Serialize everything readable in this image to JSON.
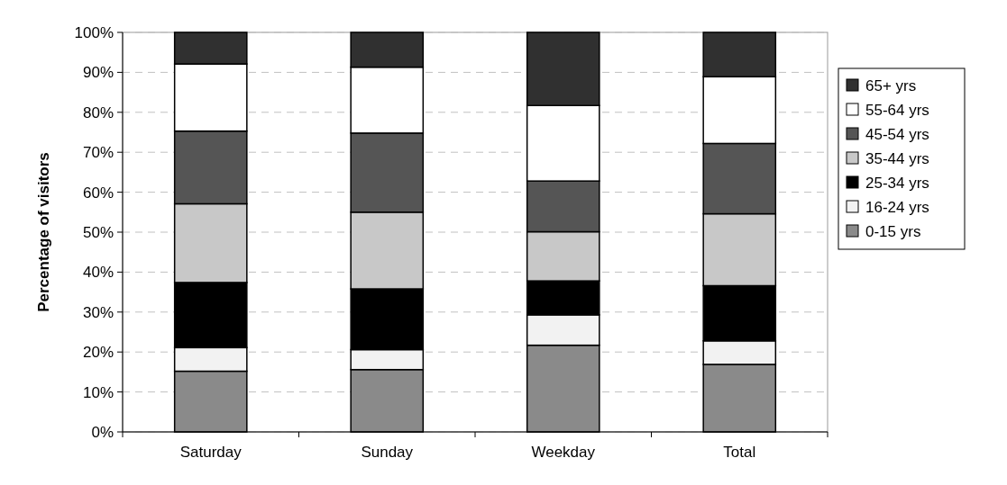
{
  "chart_data": {
    "type": "bar",
    "stacked": true,
    "ylabel": "Percentage of visitors",
    "categories": [
      "Saturday",
      "Sunday",
      "Weekday",
      "Total"
    ],
    "series": [
      {
        "name": "0-15 yrs",
        "color": "#8a8a8a",
        "values": [
          15.2,
          15.6,
          21.7,
          16.9
        ]
      },
      {
        "name": "16-24 yrs",
        "color": "#f2f2f2",
        "values": [
          5.9,
          5.0,
          7.6,
          5.9
        ]
      },
      {
        "name": "25-34 yrs",
        "color": "#000000",
        "values": [
          16.3,
          15.2,
          8.5,
          13.8
        ]
      },
      {
        "name": "35-44 yrs",
        "color": "#c8c8c8",
        "values": [
          19.7,
          19.2,
          12.3,
          18.0
        ]
      },
      {
        "name": "45-54 yrs",
        "color": "#555555",
        "values": [
          18.2,
          19.8,
          12.7,
          17.6
        ]
      },
      {
        "name": "55-64 yrs",
        "color": "#ffffff",
        "values": [
          16.8,
          16.5,
          18.9,
          16.7
        ]
      },
      {
        "name": "65+ yrs",
        "color": "#303030",
        "values": [
          7.9,
          8.7,
          18.3,
          11.1
        ]
      }
    ],
    "ylim": [
      0,
      100
    ],
    "yticks": [
      {
        "value": 0,
        "label": "0%"
      },
      {
        "value": 10,
        "label": "10%"
      },
      {
        "value": 20,
        "label": "20%"
      },
      {
        "value": 30,
        "label": "30%"
      },
      {
        "value": 40,
        "label": "40%"
      },
      {
        "value": 50,
        "label": "50%"
      },
      {
        "value": 60,
        "label": "60%"
      },
      {
        "value": 70,
        "label": "70%"
      },
      {
        "value": 80,
        "label": "80%"
      },
      {
        "value": 90,
        "label": "90%"
      },
      {
        "value": 100,
        "label": "100%"
      }
    ],
    "grid": "y",
    "legend": "right"
  }
}
